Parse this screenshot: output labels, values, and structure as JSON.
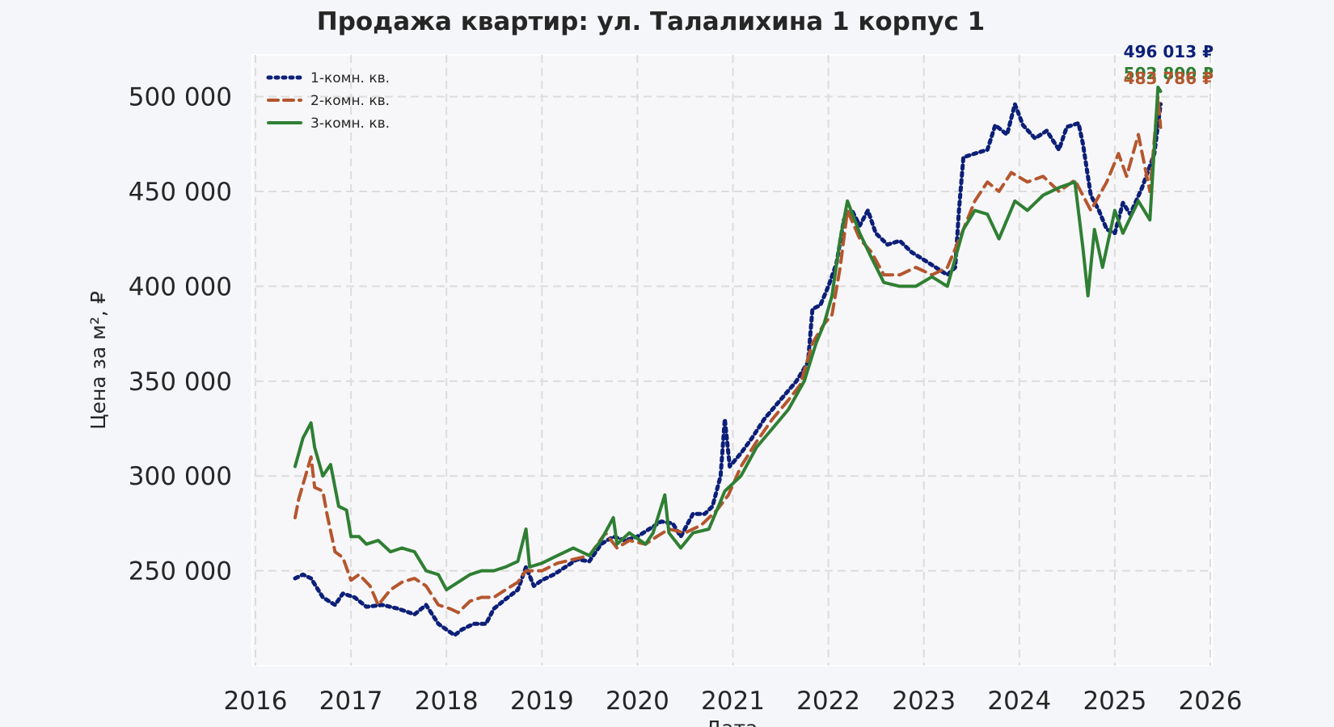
{
  "chart_data": {
    "type": "line",
    "title": "Продажа квартир: ул. Талалихина 1 корпус 1",
    "xlabel": "Дата",
    "ylabel": "Цена за м², ₽",
    "xlim": [
      "2016-01-01",
      "2026-01-01"
    ],
    "ylim": [
      200000,
      522000
    ],
    "x_ticks": [
      "2016",
      "2017",
      "2018",
      "2019",
      "2020",
      "2021",
      "2022",
      "2023",
      "2024",
      "2025",
      "2026"
    ],
    "y_ticks": [
      "250 000",
      "300 000",
      "350 000",
      "400 000",
      "450 000",
      "500 000"
    ],
    "grid": true,
    "legend_position": "top-left",
    "series": [
      {
        "name": "1-комн. кв.",
        "color": "#0c1f78",
        "style": "dotted",
        "end_label": "496 013 ₽",
        "points": [
          [
            "2016-06-01",
            246000
          ],
          [
            "2016-07-01",
            248000
          ],
          [
            "2016-08-01",
            246000
          ],
          [
            "2016-09-15",
            236000
          ],
          [
            "2016-11-01",
            232000
          ],
          [
            "2016-12-01",
            238000
          ],
          [
            "2017-01-15",
            236000
          ],
          [
            "2017-03-01",
            231000
          ],
          [
            "2017-05-01",
            232000
          ],
          [
            "2017-07-01",
            230000
          ],
          [
            "2017-09-01",
            227000
          ],
          [
            "2017-10-15",
            232000
          ],
          [
            "2017-12-01",
            222000
          ],
          [
            "2018-01-01",
            219000
          ],
          [
            "2018-02-01",
            216000
          ],
          [
            "2018-03-01",
            219000
          ],
          [
            "2018-04-15",
            222000
          ],
          [
            "2018-06-01",
            222000
          ],
          [
            "2018-07-01",
            230000
          ],
          [
            "2018-08-15",
            235000
          ],
          [
            "2018-10-01",
            240000
          ],
          [
            "2018-11-01",
            252000
          ],
          [
            "2018-12-01",
            242000
          ],
          [
            "2019-01-01",
            245000
          ],
          [
            "2019-02-15",
            248000
          ],
          [
            "2019-04-01",
            252000
          ],
          [
            "2019-05-15",
            256000
          ],
          [
            "2019-07-01",
            255000
          ],
          [
            "2019-08-15",
            264000
          ],
          [
            "2019-10-01",
            268000
          ],
          [
            "2019-11-15",
            266000
          ],
          [
            "2020-01-01",
            268000
          ],
          [
            "2020-02-15",
            272000
          ],
          [
            "2020-04-01",
            276000
          ],
          [
            "2020-05-15",
            275000
          ],
          [
            "2020-06-15",
            268000
          ],
          [
            "2020-08-01",
            280000
          ],
          [
            "2020-09-15",
            280000
          ],
          [
            "2020-10-15",
            284000
          ],
          [
            "2020-11-15",
            300000
          ],
          [
            "2020-12-01",
            330000
          ],
          [
            "2020-12-20",
            305000
          ],
          [
            "2021-02-01",
            312000
          ],
          [
            "2021-03-15",
            320000
          ],
          [
            "2021-05-01",
            330000
          ],
          [
            "2021-07-01",
            340000
          ],
          [
            "2021-09-01",
            350000
          ],
          [
            "2021-10-15",
            360000
          ],
          [
            "2021-11-01",
            388000
          ],
          [
            "2021-12-01",
            390000
          ],
          [
            "2022-01-01",
            400000
          ],
          [
            "2022-02-01",
            412000
          ],
          [
            "2022-03-01",
            435000
          ],
          [
            "2022-04-01",
            440000
          ],
          [
            "2022-05-01",
            432000
          ],
          [
            "2022-06-01",
            440000
          ],
          [
            "2022-07-01",
            428000
          ],
          [
            "2022-08-15",
            422000
          ],
          [
            "2022-10-01",
            424000
          ],
          [
            "2022-11-15",
            418000
          ],
          [
            "2023-01-01",
            414000
          ],
          [
            "2023-02-15",
            410000
          ],
          [
            "2023-04-01",
            406000
          ],
          [
            "2023-05-01",
            410000
          ],
          [
            "2023-05-15",
            440000
          ],
          [
            "2023-06-01",
            468000
          ],
          [
            "2023-07-15",
            470000
          ],
          [
            "2023-09-01",
            472000
          ],
          [
            "2023-10-01",
            485000
          ],
          [
            "2023-11-15",
            480000
          ],
          [
            "2023-12-15",
            496000
          ],
          [
            "2024-01-15",
            485000
          ],
          [
            "2024-03-01",
            478000
          ],
          [
            "2024-04-15",
            482000
          ],
          [
            "2024-06-01",
            472000
          ],
          [
            "2024-07-01",
            484000
          ],
          [
            "2024-08-15",
            486000
          ],
          [
            "2024-09-01",
            475000
          ],
          [
            "2024-10-01",
            448000
          ],
          [
            "2024-11-01",
            440000
          ],
          [
            "2024-12-01",
            430000
          ],
          [
            "2025-01-01",
            428000
          ],
          [
            "2025-02-01",
            444000
          ],
          [
            "2025-03-01",
            438000
          ],
          [
            "2025-04-15",
            452000
          ],
          [
            "2025-06-01",
            470000
          ],
          [
            "2025-06-25",
            496013
          ]
        ]
      },
      {
        "name": "2-комн. кв.",
        "color": "#b5562e",
        "style": "dashed",
        "end_label": "483 786 ₽",
        "points": [
          [
            "2016-06-01",
            278000
          ],
          [
            "2016-06-15",
            288000
          ],
          [
            "2016-08-01",
            310000
          ],
          [
            "2016-08-15",
            294000
          ],
          [
            "2016-09-15",
            292000
          ],
          [
            "2016-10-01",
            280000
          ],
          [
            "2016-11-01",
            260000
          ],
          [
            "2016-12-01",
            257000
          ],
          [
            "2017-01-01",
            245000
          ],
          [
            "2017-02-01",
            248000
          ],
          [
            "2017-03-15",
            242000
          ],
          [
            "2017-04-15",
            232000
          ],
          [
            "2017-06-01",
            240000
          ],
          [
            "2017-07-15",
            244000
          ],
          [
            "2017-09-01",
            246000
          ],
          [
            "2017-10-15",
            242000
          ],
          [
            "2017-12-01",
            232000
          ],
          [
            "2018-01-15",
            230000
          ],
          [
            "2018-02-15",
            228000
          ],
          [
            "2018-04-01",
            234000
          ],
          [
            "2018-05-15",
            236000
          ],
          [
            "2018-07-01",
            236000
          ],
          [
            "2018-08-15",
            240000
          ],
          [
            "2018-10-01",
            244000
          ],
          [
            "2018-11-01",
            250000
          ],
          [
            "2019-01-01",
            250000
          ],
          [
            "2019-03-01",
            254000
          ],
          [
            "2019-05-01",
            256000
          ],
          [
            "2019-07-01",
            258000
          ],
          [
            "2019-09-01",
            270000
          ],
          [
            "2019-10-15",
            262000
          ],
          [
            "2019-12-01",
            266000
          ],
          [
            "2020-02-01",
            264000
          ],
          [
            "2020-03-15",
            268000
          ],
          [
            "2020-05-01",
            272000
          ],
          [
            "2020-07-01",
            270000
          ],
          [
            "2020-09-01",
            274000
          ],
          [
            "2020-11-01",
            282000
          ],
          [
            "2020-12-15",
            290000
          ],
          [
            "2021-02-01",
            305000
          ],
          [
            "2021-04-01",
            318000
          ],
          [
            "2021-06-01",
            330000
          ],
          [
            "2021-08-01",
            340000
          ],
          [
            "2021-09-15",
            348000
          ],
          [
            "2021-11-01",
            370000
          ],
          [
            "2021-12-15",
            380000
          ],
          [
            "2022-01-15",
            385000
          ],
          [
            "2022-02-15",
            410000
          ],
          [
            "2022-03-15",
            440000
          ],
          [
            "2022-05-01",
            425000
          ],
          [
            "2022-06-15",
            418000
          ],
          [
            "2022-08-01",
            406000
          ],
          [
            "2022-10-01",
            406000
          ],
          [
            "2022-12-01",
            410000
          ],
          [
            "2023-02-01",
            406000
          ],
          [
            "2023-04-01",
            410000
          ],
          [
            "2023-06-01",
            430000
          ],
          [
            "2023-07-15",
            445000
          ],
          [
            "2023-09-01",
            455000
          ],
          [
            "2023-10-15",
            450000
          ],
          [
            "2023-12-01",
            460000
          ],
          [
            "2024-02-01",
            455000
          ],
          [
            "2024-04-01",
            458000
          ],
          [
            "2024-06-01",
            450000
          ],
          [
            "2024-08-01",
            456000
          ],
          [
            "2024-10-01",
            440000
          ],
          [
            "2024-12-01",
            455000
          ],
          [
            "2025-01-15",
            470000
          ],
          [
            "2025-02-15",
            458000
          ],
          [
            "2025-04-01",
            480000
          ],
          [
            "2025-05-15",
            450000
          ],
          [
            "2025-06-15",
            500000
          ],
          [
            "2025-06-25",
            483786
          ]
        ]
      },
      {
        "name": "3-комн. кв.",
        "color": "#2f7f33",
        "style": "solid",
        "end_label": "502 800 ₽",
        "points": [
          [
            "2016-06-01",
            305000
          ],
          [
            "2016-07-01",
            320000
          ],
          [
            "2016-08-01",
            328000
          ],
          [
            "2016-08-15",
            315000
          ],
          [
            "2016-09-15",
            300000
          ],
          [
            "2016-10-15",
            306000
          ],
          [
            "2016-11-15",
            284000
          ],
          [
            "2016-12-15",
            282000
          ],
          [
            "2017-01-01",
            268000
          ],
          [
            "2017-02-01",
            268000
          ],
          [
            "2017-03-01",
            264000
          ],
          [
            "2017-04-15",
            266000
          ],
          [
            "2017-06-01",
            260000
          ],
          [
            "2017-07-15",
            262000
          ],
          [
            "2017-09-01",
            260000
          ],
          [
            "2017-10-15",
            250000
          ],
          [
            "2017-12-01",
            248000
          ],
          [
            "2018-01-01",
            240000
          ],
          [
            "2018-02-15",
            244000
          ],
          [
            "2018-04-01",
            248000
          ],
          [
            "2018-05-15",
            250000
          ],
          [
            "2018-07-01",
            250000
          ],
          [
            "2018-08-15",
            252000
          ],
          [
            "2018-10-01",
            255000
          ],
          [
            "2018-11-01",
            272000
          ],
          [
            "2018-11-15",
            252000
          ],
          [
            "2019-01-01",
            254000
          ],
          [
            "2019-03-01",
            258000
          ],
          [
            "2019-05-01",
            262000
          ],
          [
            "2019-07-01",
            258000
          ],
          [
            "2019-08-15",
            266000
          ],
          [
            "2019-10-01",
            278000
          ],
          [
            "2019-10-15",
            264000
          ],
          [
            "2019-12-01",
            270000
          ],
          [
            "2020-02-01",
            264000
          ],
          [
            "2020-03-01",
            270000
          ],
          [
            "2020-04-15",
            290000
          ],
          [
            "2020-05-01",
            270000
          ],
          [
            "2020-06-15",
            262000
          ],
          [
            "2020-08-01",
            270000
          ],
          [
            "2020-10-01",
            272000
          ],
          [
            "2020-12-01",
            292000
          ],
          [
            "2021-02-01",
            300000
          ],
          [
            "2021-04-01",
            315000
          ],
          [
            "2021-06-01",
            325000
          ],
          [
            "2021-08-01",
            335000
          ],
          [
            "2021-10-01",
            350000
          ],
          [
            "2021-11-15",
            370000
          ],
          [
            "2021-12-15",
            380000
          ],
          [
            "2022-01-15",
            395000
          ],
          [
            "2022-02-15",
            425000
          ],
          [
            "2022-03-15",
            445000
          ],
          [
            "2022-05-01",
            428000
          ],
          [
            "2022-06-15",
            415000
          ],
          [
            "2022-08-01",
            402000
          ],
          [
            "2022-10-01",
            400000
          ],
          [
            "2022-12-01",
            400000
          ],
          [
            "2023-02-01",
            405000
          ],
          [
            "2023-04-01",
            400000
          ],
          [
            "2023-06-01",
            430000
          ],
          [
            "2023-07-15",
            440000
          ],
          [
            "2023-09-01",
            438000
          ],
          [
            "2023-10-15",
            425000
          ],
          [
            "2023-12-15",
            445000
          ],
          [
            "2024-02-01",
            440000
          ],
          [
            "2024-04-01",
            448000
          ],
          [
            "2024-06-01",
            452000
          ],
          [
            "2024-08-01",
            455000
          ],
          [
            "2024-09-01",
            420000
          ],
          [
            "2024-09-20",
            395000
          ],
          [
            "2024-10-15",
            430000
          ],
          [
            "2024-11-15",
            410000
          ],
          [
            "2025-01-01",
            440000
          ],
          [
            "2025-02-01",
            428000
          ],
          [
            "2025-04-01",
            445000
          ],
          [
            "2025-05-15",
            435000
          ],
          [
            "2025-06-15",
            505000
          ],
          [
            "2025-06-25",
            502800
          ]
        ]
      }
    ]
  }
}
